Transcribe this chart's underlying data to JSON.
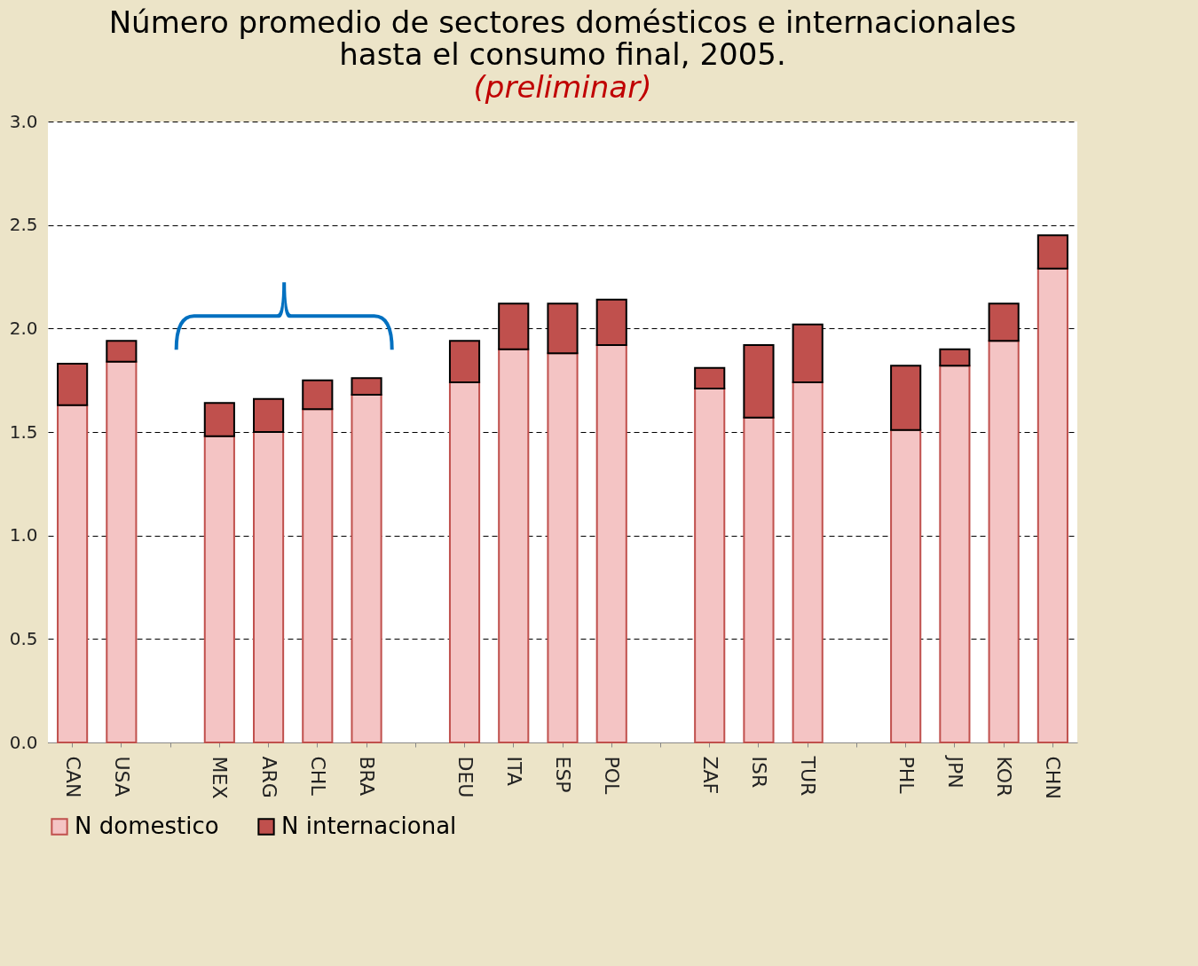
{
  "chart_data": {
    "type": "bar",
    "title": "Número promedio de sectores domésticos e internacionales hasta el consumo final, 2005.",
    "annotations": [
      "(preliminar)"
    ],
    "categories": [
      "CAN",
      "USA",
      null,
      "MEX",
      "ARG",
      "CHL",
      "BRA",
      null,
      "DEU",
      "ITA",
      "ESP",
      "POL",
      null,
      "ZAF",
      "ISR",
      "TUR",
      null,
      "PHL",
      "JPN",
      "KOR",
      "CHN"
    ],
    "stacked": true,
    "series": [
      {
        "name": "N domestico",
        "color": "#f4c4c4",
        "values": [
          1.63,
          1.84,
          null,
          1.48,
          1.5,
          1.61,
          1.68,
          null,
          1.74,
          1.9,
          1.88,
          1.92,
          null,
          1.71,
          1.57,
          1.74,
          null,
          1.51,
          1.82,
          1.94,
          2.29
        ]
      },
      {
        "name": "N internacional",
        "color": "#c0504d",
        "values": [
          0.2,
          0.1,
          null,
          0.16,
          0.16,
          0.14,
          0.08,
          null,
          0.2,
          0.22,
          0.24,
          0.22,
          null,
          0.1,
          0.35,
          0.28,
          null,
          0.31,
          0.08,
          0.18,
          0.16
        ]
      }
    ],
    "ylim": [
      0,
      3
    ],
    "yticks": [
      {
        "value": 0,
        "label": "0.0"
      },
      {
        "value": 0.5,
        "label": "0.5"
      },
      {
        "value": 1,
        "label": "1.0"
      },
      {
        "value": 1.5,
        "label": "1.5"
      },
      {
        "value": 2,
        "label": "2.0"
      },
      {
        "value": 2.5,
        "label": "2.5"
      },
      {
        "value": 3,
        "label": "3.0"
      }
    ],
    "grid": "y",
    "legend": "bottom"
  }
}
